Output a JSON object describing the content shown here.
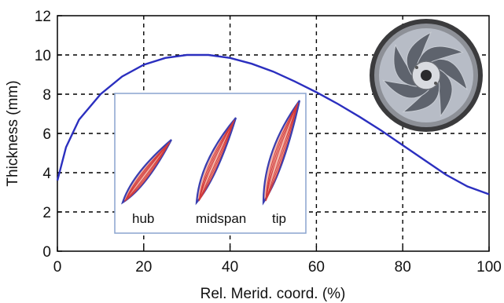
{
  "chart_data": {
    "type": "line",
    "title": "",
    "xlabel": "Rel. Merid. coord. (%)",
    "ylabel": "Thickness (mm)",
    "xlim": [
      0,
      100
    ],
    "ylim": [
      0,
      12
    ],
    "x_ticks": [
      "0",
      "20",
      "40",
      "60",
      "80",
      "100"
    ],
    "y_ticks": [
      "0",
      "2",
      "4",
      "6",
      "8",
      "10",
      "12"
    ],
    "grid": true,
    "grid_style": "dashed",
    "series": [
      {
        "color": "#2b2fbf",
        "x": [
          0,
          2,
          5,
          10,
          15,
          20,
          25,
          30,
          35,
          40,
          45,
          50,
          55,
          60,
          65,
          70,
          75,
          80,
          85,
          90,
          95,
          100
        ],
        "y": [
          3.6,
          5.3,
          6.7,
          8.0,
          8.9,
          9.5,
          9.85,
          10.0,
          10.0,
          9.85,
          9.55,
          9.15,
          8.65,
          8.1,
          7.5,
          6.85,
          6.15,
          5.4,
          4.65,
          3.9,
          3.3,
          2.9
        ]
      }
    ],
    "inset": {
      "labels": [
        "hub",
        "midspan",
        "tip"
      ]
    },
    "photo": {
      "description_icon": "fan-impeller-photo"
    },
    "colors": {
      "curve": "#2b2fbf",
      "inset_border": "#8aa4cf",
      "blade_fill": "#f2b4a8",
      "blade_outline": "#3a3fb0",
      "blade_inner": "#d23a3a"
    }
  }
}
